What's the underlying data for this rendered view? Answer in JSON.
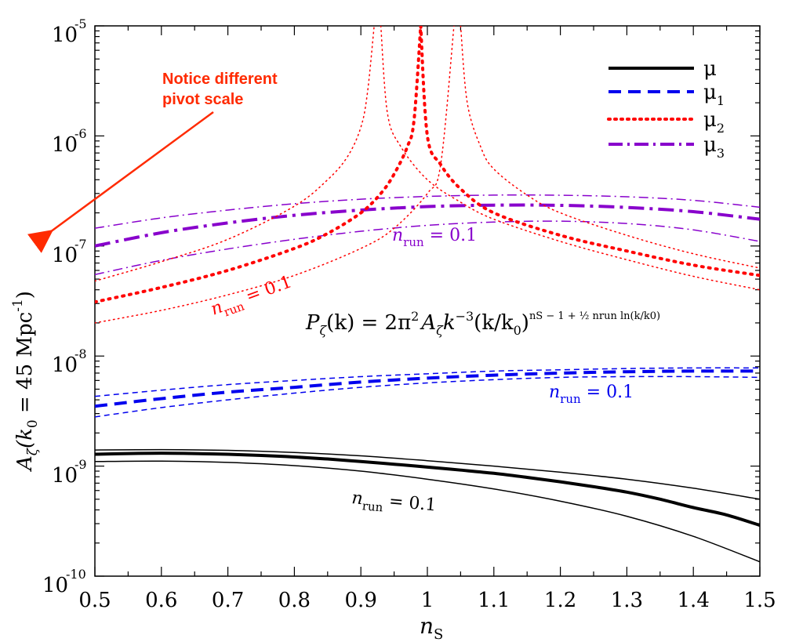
{
  "chart_data": {
    "type": "line",
    "x_scale": "linear",
    "y_scale": "log",
    "xlim": [
      0.5,
      1.5
    ],
    "ylim": [
      1e-10,
      1e-05
    ],
    "x_ticks": [
      "0.5",
      "0.6",
      "0.7",
      "0.8",
      "0.9",
      "1",
      "1.1",
      "1.2",
      "1.3",
      "1.4",
      "1.5"
    ],
    "y_ticks": [
      {
        "base": "10",
        "exp": "-10"
      },
      {
        "base": "10",
        "exp": "-9"
      },
      {
        "base": "10",
        "exp": "-8"
      },
      {
        "base": "10",
        "exp": "-7"
      },
      {
        "base": "10",
        "exp": "-6"
      },
      {
        "base": "10",
        "exp": "-5"
      }
    ],
    "xlabel": {
      "main": "n",
      "sub": "S"
    },
    "ylabel": {
      "a": "A",
      "zeta": "ζ",
      "k": "(k",
      "zero": "0",
      "rest": " = 45 Mpc",
      "exp": "-1",
      "close": ")"
    },
    "grid": false,
    "legend": {
      "placement": "top-right",
      "entries": [
        {
          "label": "μ",
          "sub": "",
          "color": "#000000",
          "style": "solid"
        },
        {
          "label": "μ",
          "sub": "1",
          "color": "#0000ee",
          "style": "dashed"
        },
        {
          "label": "μ",
          "sub": "2",
          "color": "#ff0000",
          "style": "dotted"
        },
        {
          "label": "μ",
          "sub": "3",
          "color": "#8800cc",
          "style": "dashdot"
        }
      ]
    },
    "equation": {
      "P": "P",
      "zeta": "ζ",
      "k_arg": "(k) = 2π",
      "sq": "2",
      "A": "A",
      "k": "k",
      "neg3": "−3",
      "ratio": "(k/k",
      "zero": "0",
      "close": ")",
      "exponent": "nS − 1 + ½ nrun ln(k/k0)"
    },
    "annotations": [
      {
        "text": "n",
        "sub": "run",
        "tail": " = 0.1",
        "color": "#8800cc"
      },
      {
        "text": "n",
        "sub": "run",
        "tail": " = 0.1",
        "color": "#ff0000"
      },
      {
        "text": "n",
        "sub": "run",
        "tail": " = 0.1",
        "color": "#0000ee"
      },
      {
        "text": "n",
        "sub": "run",
        "tail": " = 0.1",
        "color": "#000000"
      }
    ],
    "callout": {
      "line1": "Notice different",
      "line2": "pivot scale",
      "color": "#ff2a00"
    },
    "series": [
      {
        "name": "μ (nrun=0)",
        "family": "mu",
        "color": "#000000",
        "dash": "solid",
        "width": 4,
        "x": [
          0.5,
          0.55,
          0.6,
          0.65,
          0.7,
          0.75,
          0.8,
          0.85,
          0.9,
          0.95,
          1.0,
          1.05,
          1.1,
          1.15,
          1.2,
          1.25,
          1.3,
          1.35,
          1.4,
          1.45,
          1.5
        ],
        "y": [
          1.28e-09,
          1.3e-09,
          1.31e-09,
          1.3e-09,
          1.28e-09,
          1.25e-09,
          1.21e-09,
          1.16e-09,
          1.1e-09,
          1.04e-09,
          9.8e-10,
          9.2e-10,
          8.6e-10,
          7.9e-10,
          7.2e-10,
          6.5e-10,
          5.8e-10,
          5e-10,
          4.2e-10,
          3.6e-10,
          2.9e-10
        ]
      },
      {
        "name": "μ (upper)",
        "family": "mu",
        "color": "#000000",
        "dash": "solid",
        "width": 1.5,
        "x": [
          0.5,
          0.6,
          0.7,
          0.8,
          0.9,
          1.0,
          1.1,
          1.2,
          1.3,
          1.4,
          1.5
        ],
        "y": [
          1.4e-09,
          1.41e-09,
          1.39e-09,
          1.33e-09,
          1.24e-09,
          1.12e-09,
          1e-09,
          8.8e-10,
          7.6e-10,
          6.3e-10,
          5e-10
        ]
      },
      {
        "name": "μ (lower)",
        "family": "mu",
        "color": "#000000",
        "dash": "solid",
        "width": 1.5,
        "x": [
          0.5,
          0.6,
          0.7,
          0.8,
          0.9,
          1.0,
          1.1,
          1.2,
          1.3,
          1.4,
          1.5
        ],
        "y": [
          1.1e-09,
          1.11e-09,
          1.08e-09,
          1.01e-09,
          9e-10,
          7.6e-10,
          6.2e-10,
          4.8e-10,
          3.5e-10,
          2.3e-10,
          1.35e-10
        ]
      },
      {
        "name": "μ1 (nrun=0)",
        "family": "mu1",
        "color": "#0000ee",
        "dash": "dashed",
        "width": 4,
        "x": [
          0.5,
          0.6,
          0.7,
          0.8,
          0.9,
          1.0,
          1.1,
          1.2,
          1.3,
          1.4,
          1.5
        ],
        "y": [
          3.5e-09,
          4.1e-09,
          4.7e-09,
          5.2e-09,
          5.8e-09,
          6.3e-09,
          6.7e-09,
          7e-09,
          7.2e-09,
          7.3e-09,
          7.3e-09
        ]
      },
      {
        "name": "μ1 (upper)",
        "family": "mu1",
        "color": "#0000ee",
        "dash": "dashed",
        "width": 1.5,
        "x": [
          0.5,
          0.6,
          0.7,
          0.8,
          0.9,
          1.0,
          1.1,
          1.2,
          1.3,
          1.4,
          1.5
        ],
        "y": [
          4.3e-09,
          4.9e-09,
          5.5e-09,
          6e-09,
          6.5e-09,
          6.9e-09,
          7.3e-09,
          7.5e-09,
          7.7e-09,
          7.8e-09,
          7.8e-09
        ]
      },
      {
        "name": "μ1 (lower)",
        "family": "mu1",
        "color": "#0000ee",
        "dash": "dashed",
        "width": 1.5,
        "x": [
          0.5,
          0.6,
          0.7,
          0.8,
          0.9,
          1.0,
          1.1,
          1.2,
          1.3,
          1.4,
          1.5
        ],
        "y": [
          2.8e-09,
          3.4e-09,
          4e-09,
          4.6e-09,
          5.2e-09,
          5.7e-09,
          6.1e-09,
          6.4e-09,
          6.5e-09,
          6.5e-09,
          6.4e-09
        ]
      },
      {
        "name": "μ3 (nrun=0)",
        "family": "mu3",
        "color": "#8800cc",
        "dash": "dashdot",
        "width": 4,
        "x": [
          0.5,
          0.6,
          0.7,
          0.8,
          0.9,
          1.0,
          1.1,
          1.2,
          1.3,
          1.4,
          1.5
        ],
        "y": [
          1e-07,
          1.32e-07,
          1.62e-07,
          1.9e-07,
          2.12e-07,
          2.28e-07,
          2.35e-07,
          2.34e-07,
          2.24e-07,
          2.05e-07,
          1.75e-07
        ]
      },
      {
        "name": "μ3 (upper)",
        "family": "mu3",
        "color": "#8800cc",
        "dash": "dashdot",
        "width": 1.5,
        "x": [
          0.5,
          0.6,
          0.7,
          0.8,
          0.9,
          1.0,
          1.1,
          1.2,
          1.3,
          1.4,
          1.5
        ],
        "y": [
          1.45e-07,
          1.8e-07,
          2.12e-07,
          2.42e-07,
          2.66e-07,
          2.82e-07,
          2.9e-07,
          2.89e-07,
          2.8e-07,
          2.6e-07,
          2.25e-07
        ]
      },
      {
        "name": "μ3 (lower)",
        "family": "mu3",
        "color": "#8800cc",
        "dash": "dashdot",
        "width": 1.5,
        "x": [
          0.5,
          0.6,
          0.7,
          0.8,
          0.9,
          1.0,
          1.1,
          1.2,
          1.3,
          1.4,
          1.5
        ],
        "y": [
          5.5e-08,
          7.4e-08,
          9.4e-08,
          1.15e-07,
          1.36e-07,
          1.54e-07,
          1.65e-07,
          1.68e-07,
          1.6e-07,
          1.4e-07,
          1.1e-07
        ]
      },
      {
        "name": "μ2 (nrun=0) left",
        "family": "mu2",
        "color": "#ff0000",
        "dash": "dotted",
        "width": 4,
        "x": [
          0.5,
          0.6,
          0.7,
          0.8,
          0.85,
          0.9,
          0.93,
          0.95,
          0.97,
          0.98,
          0.99
        ],
        "y": [
          3.1e-08,
          4.2e-08,
          6e-08,
          9.5e-08,
          1.3e-07,
          2e-07,
          3e-07,
          4.5e-07,
          8e-07,
          1.4e-06,
          1e-05
        ]
      },
      {
        "name": "μ2 (nrun=0) right",
        "family": "mu2",
        "color": "#ff0000",
        "dash": "dotted",
        "width": 4,
        "x": [
          0.99,
          1.0,
          1.02,
          1.05,
          1.1,
          1.2,
          1.3,
          1.4,
          1.5
        ],
        "y": [
          1e-05,
          1e-06,
          5.5e-07,
          3.3e-07,
          2e-07,
          1.25e-07,
          9e-08,
          6.7e-08,
          5.4e-08
        ]
      },
      {
        "name": "μ2 (upper) left",
        "family": "mu2",
        "color": "#ff0000",
        "dash": "dotted",
        "width": 1.5,
        "x": [
          0.5,
          0.6,
          0.7,
          0.8,
          0.85,
          0.88,
          0.9,
          0.91,
          0.92
        ],
        "y": [
          4.8e-08,
          7.2e-08,
          1.15e-07,
          2.3e-07,
          4e-07,
          6.5e-07,
          1.2e-06,
          2.5e-06,
          1e-05
        ]
      },
      {
        "name": "μ2 (upper) right",
        "family": "mu2",
        "color": "#ff0000",
        "dash": "dotted",
        "width": 1.5,
        "x": [
          0.93,
          0.94,
          0.96,
          1.0,
          1.05,
          1.1,
          1.2,
          1.3,
          1.4,
          1.5
        ],
        "y": [
          1e-05,
          1.6e-06,
          8e-07,
          4e-07,
          2.5e-07,
          1.75e-07,
          1.1e-07,
          7.5e-08,
          5.3e-08,
          4e-08
        ]
      },
      {
        "name": "μ2 (lower) left",
        "family": "mu2",
        "color": "#ff0000",
        "dash": "dotted",
        "width": 1.5,
        "x": [
          0.5,
          0.6,
          0.7,
          0.8,
          0.9,
          0.95,
          1.0,
          1.02,
          1.04
        ],
        "y": [
          2e-08,
          2.6e-08,
          3.6e-08,
          5.4e-08,
          9.5e-08,
          1.45e-07,
          3e-07,
          5.5e-07,
          1e-05
        ]
      },
      {
        "name": "μ2 (lower) right",
        "family": "mu2",
        "color": "#ff0000",
        "dash": "dotted",
        "width": 1.5,
        "x": [
          1.05,
          1.06,
          1.08,
          1.1,
          1.15,
          1.2,
          1.3,
          1.4,
          1.5
        ],
        "y": [
          1e-05,
          2e-06,
          8e-07,
          5e-07,
          2.9e-07,
          2e-07,
          1.25e-07,
          8.5e-08,
          6.3e-08
        ]
      }
    ]
  }
}
